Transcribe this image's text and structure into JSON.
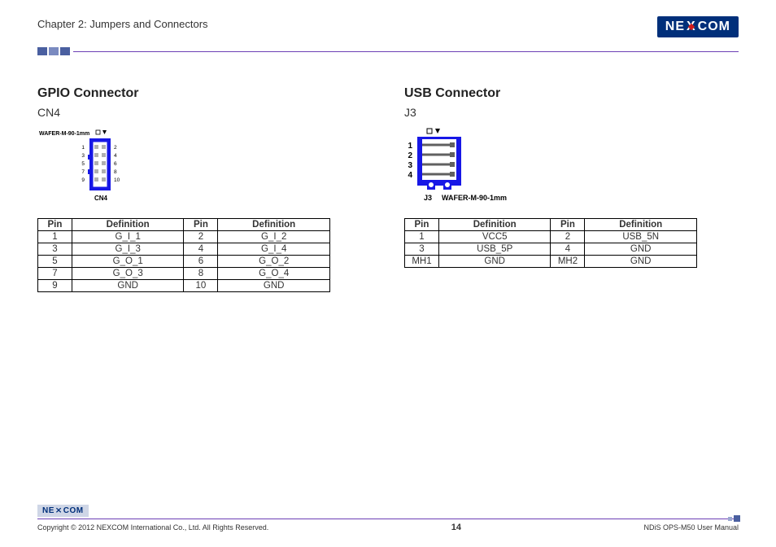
{
  "header": {
    "chapter_title": "Chapter 2: Jumpers and Connectors",
    "logo_text_pre": "NE",
    "logo_text_x": "X",
    "logo_text_post": "COM"
  },
  "colors": {
    "accent_purple": "#6c3fb5",
    "logo_bg": "#002f7a",
    "diagram_blue": "#1717e6",
    "diagram_fill": "#ffffff",
    "table_border": "#000000"
  },
  "gpio": {
    "title": "GPIO Connector",
    "subtitle": "CN4",
    "diagram": {
      "top_label": "WAFER-M-90-1mm",
      "bottom_label": "CN4",
      "left_numbers": [
        "1",
        "3",
        "5",
        "7",
        "9"
      ],
      "right_numbers": [
        "2",
        "4",
        "6",
        "8",
        "10"
      ],
      "body_color": "#1717e6",
      "pin_color": "#c0c0c0"
    },
    "table": {
      "headers": [
        "Pin",
        "Definition",
        "Pin",
        "Definition"
      ],
      "rows": [
        [
          "1",
          "G_I_1",
          "2",
          "G_I_2"
        ],
        [
          "3",
          "G_I_3",
          "4",
          "G_I_4"
        ],
        [
          "5",
          "G_O_1",
          "6",
          "G_O_2"
        ],
        [
          "7",
          "G_O_3",
          "8",
          "G_O_4"
        ],
        [
          "9",
          "GND",
          "10",
          "GND"
        ]
      ]
    }
  },
  "usb": {
    "title": "USB Connector",
    "subtitle": "J3",
    "diagram": {
      "side_numbers": [
        "1",
        "2",
        "3",
        "4"
      ],
      "bottom_j": "J3",
      "bottom_label": "WAFER-M-90-1mm",
      "body_color": "#1717e6",
      "pin_color": "#808080"
    },
    "table": {
      "headers": [
        "Pin",
        "Definition",
        "Pin",
        "Definition"
      ],
      "rows": [
        [
          "1",
          "VCC5",
          "2",
          "USB_5N"
        ],
        [
          "3",
          "USB_5P",
          "4",
          "GND"
        ],
        [
          "MH1",
          "GND",
          "MH2",
          "GND"
        ]
      ]
    }
  },
  "footer": {
    "logo_small": "NE COM",
    "copyright": "Copyright © 2012 NEXCOM International Co., Ltd. All Rights Reserved.",
    "page_number": "14",
    "doc_title": "NDiS OPS-M50 User Manual"
  }
}
